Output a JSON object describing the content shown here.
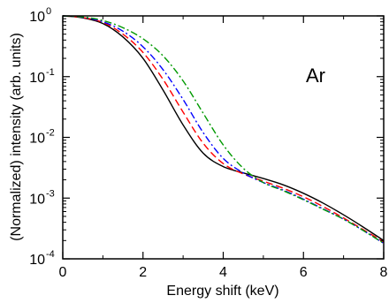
{
  "chart_data": {
    "type": "line",
    "xlabel": "Energy shift (keV)",
    "ylabel": "(Normalized) intensity (arb. units)",
    "annotation": "Ar",
    "xlim": [
      0,
      8
    ],
    "ylim": [
      0.0001,
      1
    ],
    "yscale": "log",
    "grid": false,
    "x_ticks": [
      0,
      2,
      4,
      6,
      8
    ],
    "y_ticks": [
      {
        "base": "10",
        "exp": "-4",
        "value": 0.0001
      },
      {
        "base": "10",
        "exp": "-3",
        "value": 0.001
      },
      {
        "base": "10",
        "exp": "-2",
        "value": 0.01
      },
      {
        "base": "10",
        "exp": "-1",
        "value": 0.1
      },
      {
        "base": "10",
        "exp": "0",
        "value": 1
      }
    ],
    "series": [
      {
        "color": "#000000",
        "dash": "solid",
        "x": [
          0,
          0.5,
          1.0,
          1.5,
          2.0,
          2.5,
          3.0,
          3.5,
          4.0,
          4.5,
          5.0,
          5.5,
          6.0,
          6.5,
          7.0,
          7.5,
          8.0
        ],
        "y": [
          1.0,
          0.93,
          0.75,
          0.45,
          0.2,
          0.06,
          0.016,
          0.0055,
          0.0033,
          0.0026,
          0.0021,
          0.00165,
          0.0012,
          0.00082,
          0.00053,
          0.00033,
          0.0002
        ]
      },
      {
        "color": "#ff0000",
        "dash": "dashed",
        "x": [
          0,
          0.5,
          1.0,
          1.5,
          2.0,
          2.5,
          3.0,
          3.5,
          4.0,
          4.5,
          5.0,
          5.5,
          6.0,
          6.5,
          7.0,
          7.5,
          8.0
        ],
        "y": [
          1.0,
          0.94,
          0.78,
          0.5,
          0.25,
          0.09,
          0.026,
          0.008,
          0.0037,
          0.0025,
          0.0019,
          0.00145,
          0.00105,
          0.00072,
          0.00047,
          0.0003,
          0.00019
        ]
      },
      {
        "color": "#0000ff",
        "dash": "dashdot",
        "x": [
          0,
          0.5,
          1.0,
          1.5,
          2.0,
          2.5,
          3.0,
          3.5,
          4.0,
          4.5,
          5.0,
          5.5,
          6.0,
          6.5,
          7.0,
          7.5,
          8.0
        ],
        "y": [
          1.0,
          0.95,
          0.8,
          0.56,
          0.31,
          0.13,
          0.042,
          0.012,
          0.0045,
          0.0026,
          0.0018,
          0.00135,
          0.00096,
          0.00066,
          0.00045,
          0.00029,
          0.00018
        ]
      },
      {
        "color": "#009900",
        "dash": "dashdot",
        "x": [
          0,
          0.5,
          1.0,
          1.5,
          2.0,
          2.5,
          3.0,
          3.5,
          4.0,
          4.5,
          5.0,
          5.5,
          6.0,
          6.5,
          7.0,
          7.5,
          8.0
        ],
        "y": [
          1.0,
          0.96,
          0.84,
          0.64,
          0.42,
          0.22,
          0.085,
          0.025,
          0.0075,
          0.0031,
          0.0018,
          0.00132,
          0.00094,
          0.00065,
          0.00045,
          0.00029,
          0.00018
        ]
      }
    ]
  }
}
